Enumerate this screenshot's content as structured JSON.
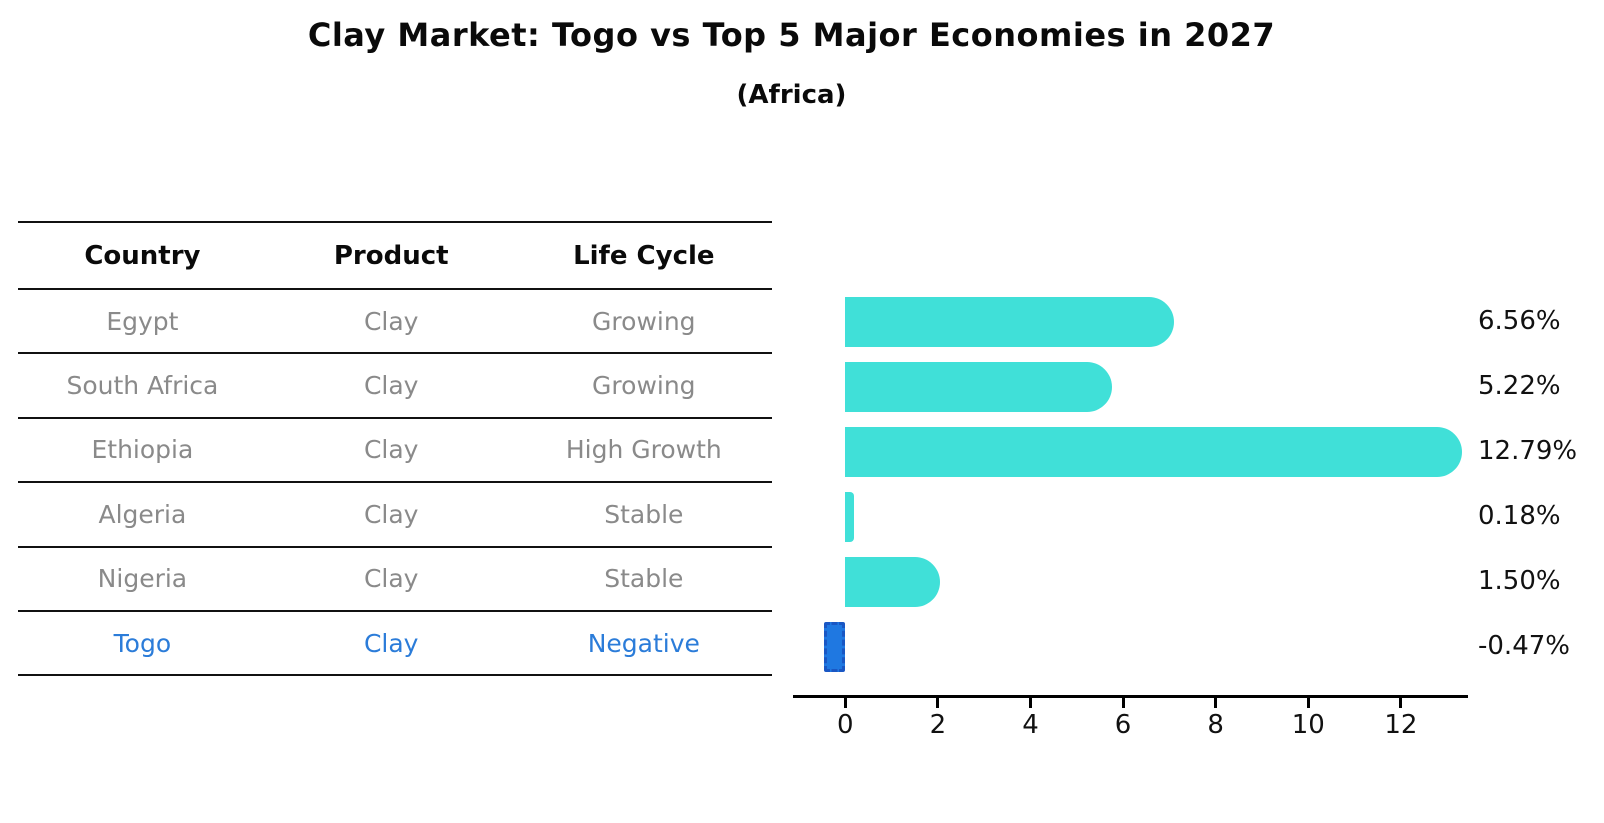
{
  "title": "Clay Market: Togo vs Top 5 Major Economies in 2027",
  "subtitle": "(Africa)",
  "table": {
    "headers": [
      "Country",
      "Product",
      "Life Cycle"
    ],
    "rows": [
      {
        "country": "Egypt",
        "product": "Clay",
        "life_cycle": "Growing",
        "highlight": false
      },
      {
        "country": "South Africa",
        "product": "Clay",
        "life_cycle": "Growing",
        "highlight": false
      },
      {
        "country": "Ethiopia",
        "product": "Clay",
        "life_cycle": "High Growth",
        "highlight": false
      },
      {
        "country": "Algeria",
        "product": "Clay",
        "life_cycle": "Stable",
        "highlight": false
      },
      {
        "country": "Nigeria",
        "product": "Clay",
        "life_cycle": "Stable",
        "highlight": false
      },
      {
        "country": "Togo",
        "product": "Clay",
        "life_cycle": "Negative",
        "highlight": true
      }
    ]
  },
  "chart_data": {
    "type": "bar",
    "orientation": "horizontal",
    "title": "Clay Market: Togo vs Top 5 Major Economies in 2027",
    "subtitle": "(Africa)",
    "categories": [
      "Egypt",
      "South Africa",
      "Ethiopia",
      "Algeria",
      "Nigeria",
      "Togo"
    ],
    "values": [
      6.56,
      5.22,
      12.79,
      0.18,
      1.5,
      -0.47
    ],
    "value_labels": [
      "6.56%",
      "5.22%",
      "12.79%",
      "0.18%",
      "1.50%",
      "-0.47%"
    ],
    "x_ticks": [
      0,
      2,
      4,
      6,
      8,
      10,
      12
    ],
    "xlim": [
      -1.13,
      13.45
    ],
    "xlabel": "",
    "ylabel": "",
    "grid": false,
    "legend": false
  },
  "colors": {
    "bar_cyan": "#40e0d8",
    "togo_bar_fill": "#1f78e1",
    "togo_bar_border": "#1a57c4",
    "togo_text_blue": "#2b7cd9",
    "table_text_gray": "#8a8a8a",
    "axis_black": "#000000"
  }
}
